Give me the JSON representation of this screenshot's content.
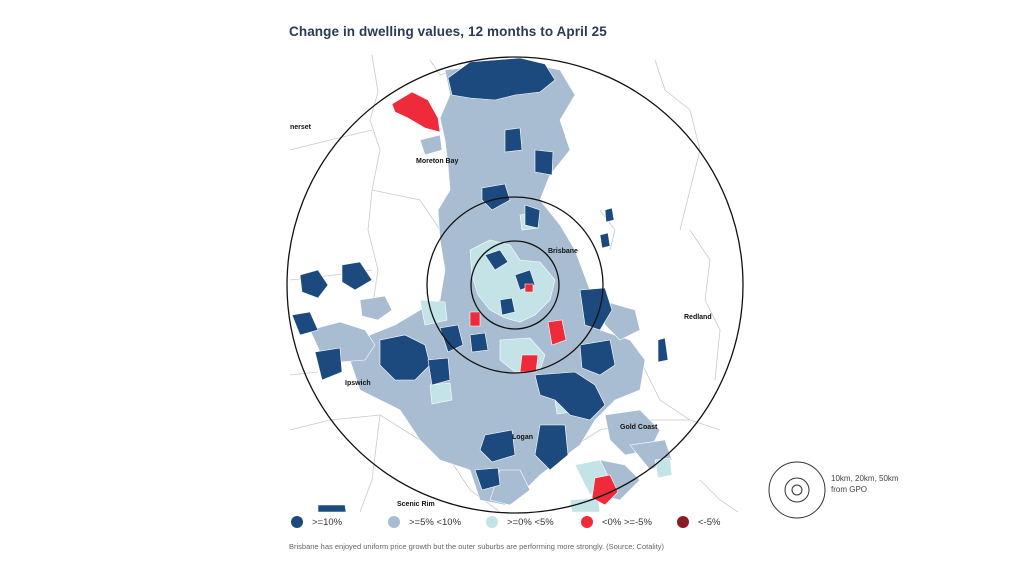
{
  "title": "Change in dwelling values, 12 months to April 25",
  "places": [
    {
      "id": "somerset",
      "name": "nerset"
    },
    {
      "id": "moreton-bay",
      "name": "Moreton Bay"
    },
    {
      "id": "brisbane",
      "name": "Brisbane"
    },
    {
      "id": "redland",
      "name": "Redland"
    },
    {
      "id": "ipswich",
      "name": "Ipswich"
    },
    {
      "id": "logan",
      "name": "Logan"
    },
    {
      "id": "gold-coast",
      "name": "Gold Coast"
    },
    {
      "id": "scenic-rim",
      "name": "Scenic Rim"
    }
  ],
  "legend": [
    {
      "label": ">=10%",
      "color": "#1c4a7e"
    },
    {
      "label": ">=5% <10%",
      "color": "#a9bdd2"
    },
    {
      "label": ">=0% <5%",
      "color": "#c4e3e6"
    },
    {
      "label": "<0% >=-5%",
      "color": "#ee2a3b"
    },
    {
      "label": "<-5%",
      "color": "#8c1c24"
    }
  ],
  "rings_note": "10km, 20km, 50km from GPO",
  "caption": "Brisbane has enjoyed uniform price growth but the outer suburbs are performing more strongly. (Source: Cotality)"
}
